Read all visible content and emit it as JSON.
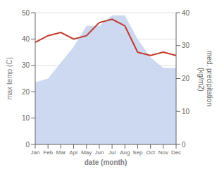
{
  "chart_data": {
    "type": "area",
    "xlabel": "date (month)",
    "ylabel": "max temp (C)",
    "y2label": "med. precipitation\n (kg/m2)",
    "categories": [
      "Jan",
      "Feb",
      "Mar",
      "Apr",
      "May",
      "Jun",
      "Jul",
      "Aug",
      "Sep",
      "Oct",
      "Nov",
      "Dec"
    ],
    "series": [
      {
        "type": "area",
        "color": "#c8d4f0",
        "values": [
          23.5,
          25,
          31,
          37,
          45,
          45,
          49,
          49,
          40,
          33,
          29,
          29
        ]
      },
      {
        "type": "line",
        "color": "#c0392b",
        "axis": "y2",
        "values": [
          31,
          33,
          34,
          32,
          33,
          37,
          38,
          36,
          28,
          27,
          28,
          27
        ]
      }
    ],
    "ylim": [
      0,
      50
    ],
    "yticks": [
      0,
      10,
      20,
      30,
      40,
      50
    ],
    "y2lim": [
      0,
      40
    ],
    "y2ticks": [
      0,
      10,
      20,
      30,
      40
    ],
    "grid": true
  }
}
